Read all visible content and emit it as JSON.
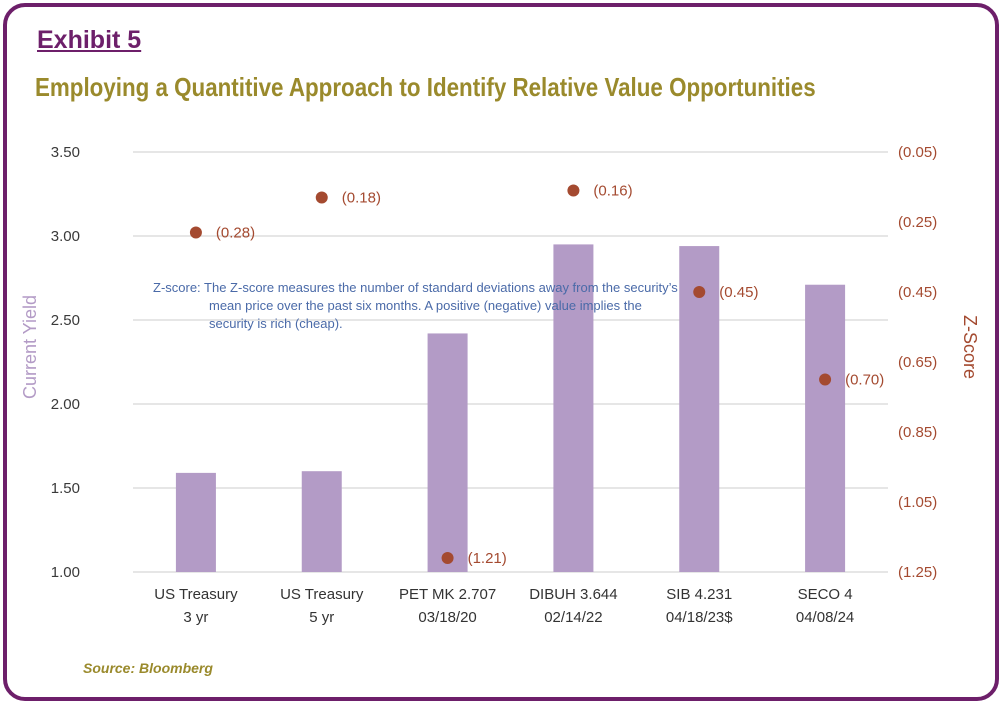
{
  "exhibit_label": "Exhibit 5",
  "source": "Source: Bloomberg",
  "note": "Z-score: The Z-score measures the number of standard deviations away from the security’s mean price over the past six months.  A positive (negative) value implies the security is rich (cheap).",
  "colors": {
    "frame": "#6d1f6a",
    "title": "#9a8a2c",
    "bar": "#b39bc6",
    "dot": "#a44a30",
    "grid": "#cccccc",
    "note": "#4a6aa8"
  },
  "chart_data": {
    "type": "bar",
    "title": "Employing a Quantitive Approach to Identify Relative Value Opportunities",
    "ylabel": "Current Yield",
    "y2label": "Z-Score",
    "ylim": [
      1.0,
      3.5
    ],
    "y2lim": [
      -1.25,
      -0.05
    ],
    "yticks": [
      "1.00",
      "1.50",
      "2.00",
      "2.50",
      "3.00",
      "3.50"
    ],
    "y2ticks": [
      "(1.25)",
      "(1.05)",
      "(0.85)",
      "(0.65)",
      "(0.45)",
      "(0.25)",
      "(0.05)"
    ],
    "categories": [
      [
        "US Treasury",
        "3 yr"
      ],
      [
        "US Treasury",
        "5 yr"
      ],
      [
        "PET MK 2.707",
        "03/18/20"
      ],
      [
        "DIBUH 3.644",
        "02/14/22"
      ],
      [
        "SIB 4.231",
        "04/18/23$"
      ],
      [
        "SECO 4",
        "04/08/24"
      ]
    ],
    "series": [
      {
        "name": "Current Yield",
        "kind": "bar",
        "axis": "left",
        "values": [
          1.59,
          1.6,
          2.42,
          2.95,
          2.94,
          2.71
        ]
      },
      {
        "name": "Z-Score",
        "kind": "scatter",
        "axis": "right",
        "values": [
          -0.28,
          -0.18,
          -1.21,
          -0.16,
          -0.45,
          -0.7
        ],
        "labels": [
          "(0.28)",
          "(0.18)",
          "(1.21)",
          "(0.16)",
          "(0.45)",
          "(0.70)"
        ]
      }
    ]
  }
}
